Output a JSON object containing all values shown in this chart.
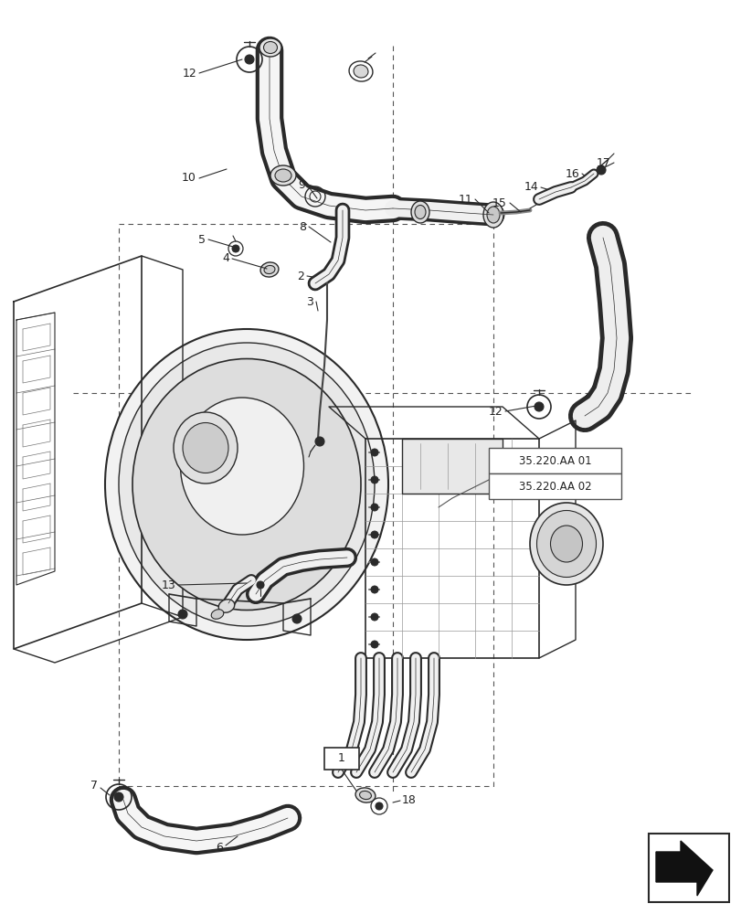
{
  "background_color": "#ffffff",
  "line_color": "#2a2a2a",
  "dashed_color": "#555555",
  "label_color": "#222222",
  "ref_box_lines": [
    "35.220.AA 01",
    "35.220.AA 02"
  ],
  "nav_arrow_color": "#111111"
}
